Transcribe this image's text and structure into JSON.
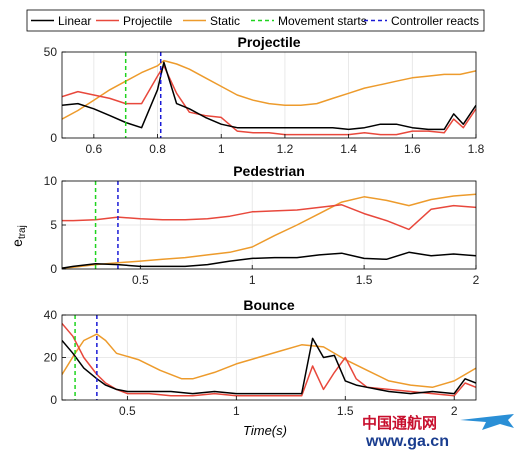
{
  "legend": [
    {
      "label": "Linear",
      "color": "#000000",
      "dash": false
    },
    {
      "label": "Projectile",
      "color": "#e8483c",
      "dash": false
    },
    {
      "label": "Static",
      "color": "#ed9b2c",
      "dash": false
    },
    {
      "label": "Movement starts",
      "color": "#1fd41f",
      "dash": true
    },
    {
      "label": "Controller reacts",
      "color": "#1a1ad6",
      "dash": true
    }
  ],
  "ylabel": {
    "main": "e",
    "sub": "traj"
  },
  "xlabel": "Time(s)",
  "watermark": {
    "cn": "中国通航网",
    "url": "www.ga.cn"
  },
  "chart_data": [
    {
      "type": "line",
      "title": "Projectile",
      "xlim": [
        0.5,
        1.8
      ],
      "ylim": [
        0,
        50
      ],
      "xticks": [
        0.6,
        0.8,
        1,
        1.2,
        1.4,
        1.6,
        1.8
      ],
      "xtick_labels": [
        "0.6",
        "0.8",
        "1",
        "1.2",
        "1.4",
        "1.6",
        "1.8"
      ],
      "yticks": [
        0,
        50
      ],
      "ytick_labels": [
        "0",
        "50"
      ],
      "grid": true,
      "vlines": [
        {
          "name": "Movement starts",
          "x": 0.7
        },
        {
          "name": "Controller reacts",
          "x": 0.81
        }
      ],
      "series": [
        {
          "name": "Static",
          "x": [
            0.5,
            0.55,
            0.6,
            0.65,
            0.7,
            0.75,
            0.8,
            0.82,
            0.86,
            0.9,
            0.95,
            1.0,
            1.05,
            1.1,
            1.15,
            1.2,
            1.25,
            1.3,
            1.35,
            1.4,
            1.45,
            1.5,
            1.55,
            1.6,
            1.65,
            1.7,
            1.75,
            1.8
          ],
          "y": [
            11,
            16,
            22,
            28,
            33,
            38,
            42,
            45,
            43,
            40,
            35,
            30,
            25,
            22,
            20,
            19,
            19,
            20,
            23,
            26,
            29,
            31,
            33,
            35,
            36,
            37,
            37,
            39
          ]
        },
        {
          "name": "Projectile",
          "x": [
            0.5,
            0.55,
            0.6,
            0.65,
            0.7,
            0.75,
            0.8,
            0.82,
            0.86,
            0.9,
            0.95,
            1.0,
            1.05,
            1.1,
            1.15,
            1.2,
            1.25,
            1.3,
            1.35,
            1.4,
            1.45,
            1.5,
            1.55,
            1.6,
            1.65,
            1.7,
            1.73,
            1.76,
            1.8
          ],
          "y": [
            24,
            27,
            25,
            23,
            20,
            20,
            36,
            42,
            26,
            15,
            13,
            12,
            4,
            3,
            3,
            2,
            2,
            2,
            2,
            2,
            3,
            2,
            2,
            4,
            4,
            3,
            11,
            6,
            17
          ]
        },
        {
          "name": "Linear",
          "x": [
            0.5,
            0.55,
            0.6,
            0.65,
            0.7,
            0.75,
            0.8,
            0.82,
            0.86,
            0.9,
            0.95,
            1.0,
            1.05,
            1.1,
            1.15,
            1.2,
            1.25,
            1.3,
            1.35,
            1.4,
            1.45,
            1.5,
            1.55,
            1.6,
            1.65,
            1.7,
            1.73,
            1.76,
            1.8
          ],
          "y": [
            19,
            20,
            17,
            13,
            9,
            6,
            28,
            44,
            20,
            17,
            12,
            8,
            6,
            6,
            6,
            6,
            6,
            6,
            6,
            5,
            6,
            8,
            8,
            6,
            5,
            5,
            14,
            8,
            19
          ]
        }
      ]
    },
    {
      "type": "line",
      "title": "Pedestrian",
      "xlim": [
        0.15,
        2
      ],
      "ylim": [
        0,
        10
      ],
      "xticks": [
        0.5,
        1,
        1.5,
        2
      ],
      "xtick_labels": [
        "0.5",
        "1",
        "1.5",
        "2"
      ],
      "yticks": [
        0,
        5,
        10
      ],
      "ytick_labels": [
        "0",
        "5",
        "10"
      ],
      "grid": true,
      "vlines": [
        {
          "name": "Movement starts",
          "x": 0.3
        },
        {
          "name": "Controller reacts",
          "x": 0.4
        }
      ],
      "series": [
        {
          "name": "Static",
          "x": [
            0.15,
            0.2,
            0.3,
            0.4,
            0.5,
            0.6,
            0.7,
            0.8,
            0.9,
            1.0,
            1.1,
            1.2,
            1.3,
            1.4,
            1.5,
            1.6,
            1.7,
            1.8,
            1.9,
            2.0
          ],
          "y": [
            0.1,
            0.2,
            0.5,
            0.7,
            0.9,
            1.1,
            1.3,
            1.6,
            1.9,
            2.5,
            3.8,
            5.0,
            6.3,
            7.6,
            8.2,
            7.8,
            7.2,
            7.9,
            8.3,
            8.5
          ]
        },
        {
          "name": "Projectile",
          "x": [
            0.15,
            0.2,
            0.3,
            0.4,
            0.5,
            0.6,
            0.7,
            0.8,
            0.9,
            1.0,
            1.1,
            1.2,
            1.3,
            1.4,
            1.5,
            1.6,
            1.7,
            1.8,
            1.9,
            2.0
          ],
          "y": [
            5.5,
            5.5,
            5.6,
            5.9,
            5.7,
            5.6,
            5.6,
            5.7,
            6.0,
            6.5,
            6.6,
            6.7,
            7.0,
            7.3,
            6.3,
            5.5,
            4.5,
            6.8,
            7.2,
            7.0
          ]
        },
        {
          "name": "Linear",
          "x": [
            0.15,
            0.2,
            0.3,
            0.4,
            0.5,
            0.6,
            0.7,
            0.8,
            0.9,
            1.0,
            1.1,
            1.2,
            1.3,
            1.4,
            1.5,
            1.6,
            1.7,
            1.8,
            1.9,
            2.0
          ],
          "y": [
            0.1,
            0.3,
            0.6,
            0.5,
            0.3,
            0.3,
            0.3,
            0.5,
            0.9,
            1.2,
            1.3,
            1.3,
            1.6,
            1.8,
            1.2,
            1.1,
            1.9,
            1.5,
            1.7,
            1.5
          ]
        }
      ]
    },
    {
      "type": "line",
      "title": "Bounce",
      "xlim": [
        0.2,
        2.1
      ],
      "ylim": [
        0,
        40
      ],
      "xticks": [
        0.5,
        1,
        1.5,
        2
      ],
      "xtick_labels": [
        "0.5",
        "1",
        "1.5",
        "2"
      ],
      "yticks": [
        0,
        20,
        40
      ],
      "ytick_labels": [
        "0",
        "20",
        "40"
      ],
      "grid": true,
      "vlines": [
        {
          "name": "Movement starts",
          "x": 0.26
        },
        {
          "name": "Controller reacts",
          "x": 0.36
        }
      ],
      "series": [
        {
          "name": "Static",
          "x": [
            0.2,
            0.26,
            0.3,
            0.36,
            0.4,
            0.45,
            0.55,
            0.65,
            0.75,
            0.8,
            0.9,
            1.0,
            1.1,
            1.2,
            1.3,
            1.4,
            1.5,
            1.6,
            1.7,
            1.8,
            1.9,
            2.0,
            2.1
          ],
          "y": [
            12,
            22,
            28,
            31,
            28,
            22,
            19,
            14,
            10,
            10,
            13,
            17,
            20,
            23,
            26,
            25,
            19,
            14,
            9,
            7,
            6,
            9,
            15
          ]
        },
        {
          "name": "Projectile",
          "x": [
            0.2,
            0.25,
            0.3,
            0.36,
            0.4,
            0.45,
            0.5,
            0.6,
            0.7,
            0.8,
            0.9,
            1.0,
            1.1,
            1.2,
            1.3,
            1.35,
            1.4,
            1.45,
            1.5,
            1.55,
            1.6,
            1.7,
            1.8,
            1.9,
            2.0,
            2.05,
            2.1
          ],
          "y": [
            36,
            30,
            20,
            12,
            8,
            5,
            3,
            3,
            2,
            2,
            3,
            2,
            2,
            2,
            2,
            16,
            5,
            13,
            20,
            10,
            6,
            5,
            4,
            3,
            2,
            8,
            6
          ]
        },
        {
          "name": "Linear",
          "x": [
            0.2,
            0.25,
            0.3,
            0.36,
            0.4,
            0.45,
            0.5,
            0.6,
            0.7,
            0.8,
            0.9,
            1.0,
            1.1,
            1.2,
            1.3,
            1.35,
            1.4,
            1.45,
            1.5,
            1.55,
            1.6,
            1.7,
            1.8,
            1.9,
            2.0,
            2.05,
            2.1
          ],
          "y": [
            28,
            22,
            15,
            10,
            7,
            5,
            4,
            4,
            4,
            3,
            4,
            3,
            3,
            3,
            3,
            29,
            20,
            21,
            9,
            7,
            6,
            4,
            3,
            4,
            3,
            10,
            8
          ]
        }
      ]
    }
  ]
}
